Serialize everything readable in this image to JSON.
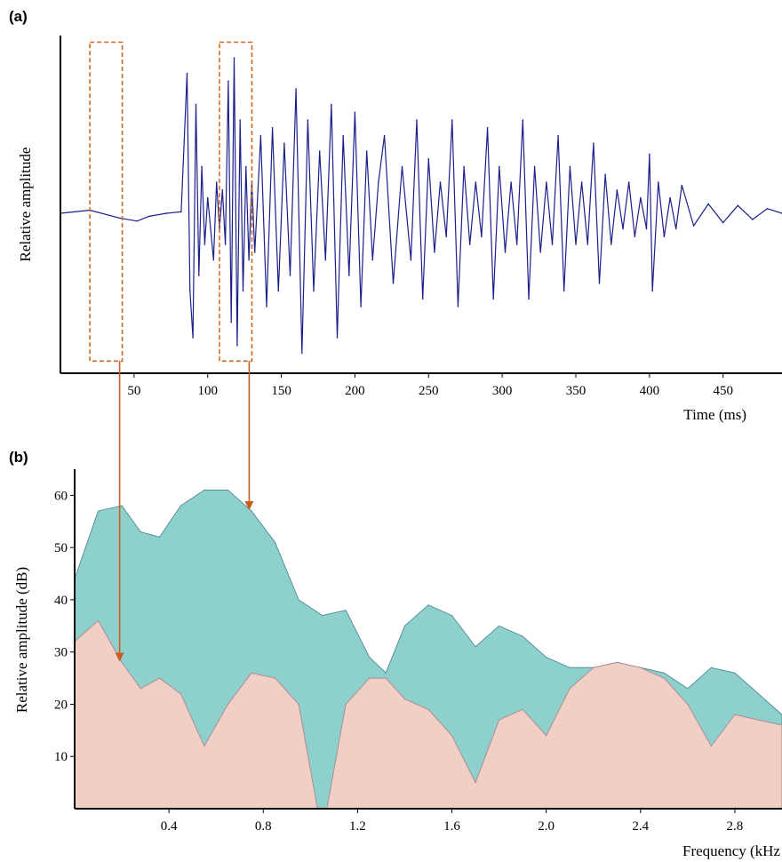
{
  "chart_data": [
    {
      "panel_label": "(a)",
      "type": "line",
      "xlabel": "Time (ms)",
      "ylabel": "Relative amplitude",
      "xlim": [
        0,
        490
      ],
      "ylim": [
        -1,
        1
      ],
      "xticks": [
        50,
        100,
        150,
        200,
        250,
        300,
        350,
        400,
        450
      ],
      "grid": false,
      "series": [
        {
          "color": "#1a1f8a",
          "x": [
            0,
            20,
            40,
            52,
            60,
            72,
            82,
            86,
            88,
            90,
            92,
            94,
            96,
            98,
            100,
            104,
            106,
            108,
            110,
            112,
            114,
            116,
            118,
            120,
            122,
            124,
            126,
            128,
            130,
            132,
            136,
            140,
            144,
            148,
            152,
            156,
            160,
            164,
            168,
            172,
            176,
            180,
            184,
            188,
            192,
            196,
            200,
            204,
            208,
            212,
            216,
            220,
            226,
            232,
            238,
            242,
            246,
            250,
            254,
            258,
            262,
            266,
            270,
            274,
            278,
            282,
            286,
            290,
            294,
            298,
            302,
            306,
            310,
            314,
            318,
            322,
            326,
            330,
            334,
            338,
            342,
            346,
            350,
            354,
            358,
            362,
            366,
            370,
            374,
            378,
            382,
            386,
            390,
            394,
            398,
            400,
            402,
            406,
            410,
            414,
            418,
            422,
            430,
            440,
            450,
            460,
            470,
            480,
            490
          ],
          "values": [
            0,
            0.02,
            -0.03,
            -0.05,
            -0.02,
            0.0,
            0.01,
            0.9,
            -0.5,
            -0.8,
            0.7,
            -0.4,
            0.3,
            -0.2,
            0.1,
            -0.3,
            0.2,
            -0.1,
            0.15,
            -0.2,
            0.85,
            -0.7,
            1.0,
            -0.85,
            0.6,
            -0.5,
            0.3,
            -0.3,
            0.2,
            -0.25,
            0.5,
            -0.6,
            0.55,
            -0.5,
            0.45,
            -0.4,
            0.8,
            -0.9,
            0.6,
            -0.5,
            0.4,
            -0.3,
            0.7,
            -0.8,
            0.5,
            -0.4,
            0.65,
            -0.6,
            0.4,
            -0.3,
            0.2,
            0.5,
            -0.45,
            0.3,
            -0.3,
            0.6,
            -0.55,
            0.35,
            -0.25,
            0.2,
            -0.15,
            0.6,
            -0.6,
            0.3,
            -0.2,
            0.2,
            -0.15,
            0.55,
            -0.55,
            0.3,
            -0.25,
            0.2,
            -0.2,
            0.6,
            -0.55,
            0.3,
            -0.25,
            0.2,
            -0.2,
            0.5,
            -0.5,
            0.3,
            -0.2,
            0.2,
            -0.2,
            0.45,
            -0.45,
            0.25,
            -0.2,
            0.15,
            -0.1,
            0.2,
            -0.15,
            0.1,
            -0.1,
            0.38,
            -0.5,
            0.2,
            -0.15,
            0.1,
            -0.1,
            0.18,
            -0.08,
            0.06,
            -0.06,
            0.05,
            -0.04,
            0.03,
            0.0
          ]
        }
      ],
      "annotations": [
        {
          "type": "dashed-box",
          "color": "#d2691e",
          "xlim": [
            20,
            42
          ],
          "ylim": [
            -0.95,
            1.1
          ]
        },
        {
          "type": "dashed-box",
          "color": "#d2691e",
          "xlim": [
            108,
            130
          ],
          "ylim": [
            -0.95,
            1.1
          ]
        }
      ]
    },
    {
      "panel_label": "(b)",
      "type": "area",
      "xlabel": "Frequency (kHz",
      "ylabel": "Relative amplitude (dB)",
      "xlim": [
        0.0,
        3.0
      ],
      "ylim": [
        0,
        65
      ],
      "xticks": [
        0.4,
        0.8,
        1.2,
        1.6,
        2.0,
        2.4,
        2.8
      ],
      "yticks": [
        10,
        20,
        30,
        40,
        50,
        60
      ],
      "grid": false,
      "series": [
        {
          "color": "#8ed1cc",
          "x": [
            0.0,
            0.1,
            0.2,
            0.28,
            0.36,
            0.45,
            0.55,
            0.65,
            0.75,
            0.85,
            0.95,
            1.05,
            1.15,
            1.25,
            1.32,
            1.4,
            1.5,
            1.6,
            1.7,
            1.8,
            1.9,
            2.0,
            2.1,
            2.2,
            2.3,
            2.4,
            2.5,
            2.6,
            2.7,
            2.8,
            2.9,
            3.0
          ],
          "values": [
            44,
            57,
            58,
            53,
            52,
            58,
            61,
            61,
            57,
            51,
            40,
            37,
            38,
            29,
            26,
            35,
            39,
            37,
            31,
            35,
            33,
            29,
            27,
            27,
            28,
            27,
            26,
            23,
            27,
            26,
            22,
            18
          ]
        },
        {
          "color": "#f0cfc4",
          "x": [
            0.0,
            0.1,
            0.2,
            0.28,
            0.36,
            0.45,
            0.55,
            0.65,
            0.75,
            0.85,
            0.95,
            1.03,
            1.07,
            1.15,
            1.25,
            1.32,
            1.4,
            1.5,
            1.6,
            1.7,
            1.8,
            1.9,
            2.0,
            2.1,
            2.2,
            2.3,
            2.4,
            2.5,
            2.6,
            2.7,
            2.8,
            2.9,
            3.0
          ],
          "values": [
            32,
            36,
            28,
            23,
            25,
            22,
            12,
            20,
            26,
            25,
            20,
            0,
            0,
            20,
            25,
            25,
            21,
            19,
            14,
            5,
            17,
            19,
            14,
            23,
            27,
            28,
            27,
            25,
            20,
            12,
            18,
            17,
            16
          ]
        }
      ]
    }
  ],
  "connector_color": "#c95b1e"
}
